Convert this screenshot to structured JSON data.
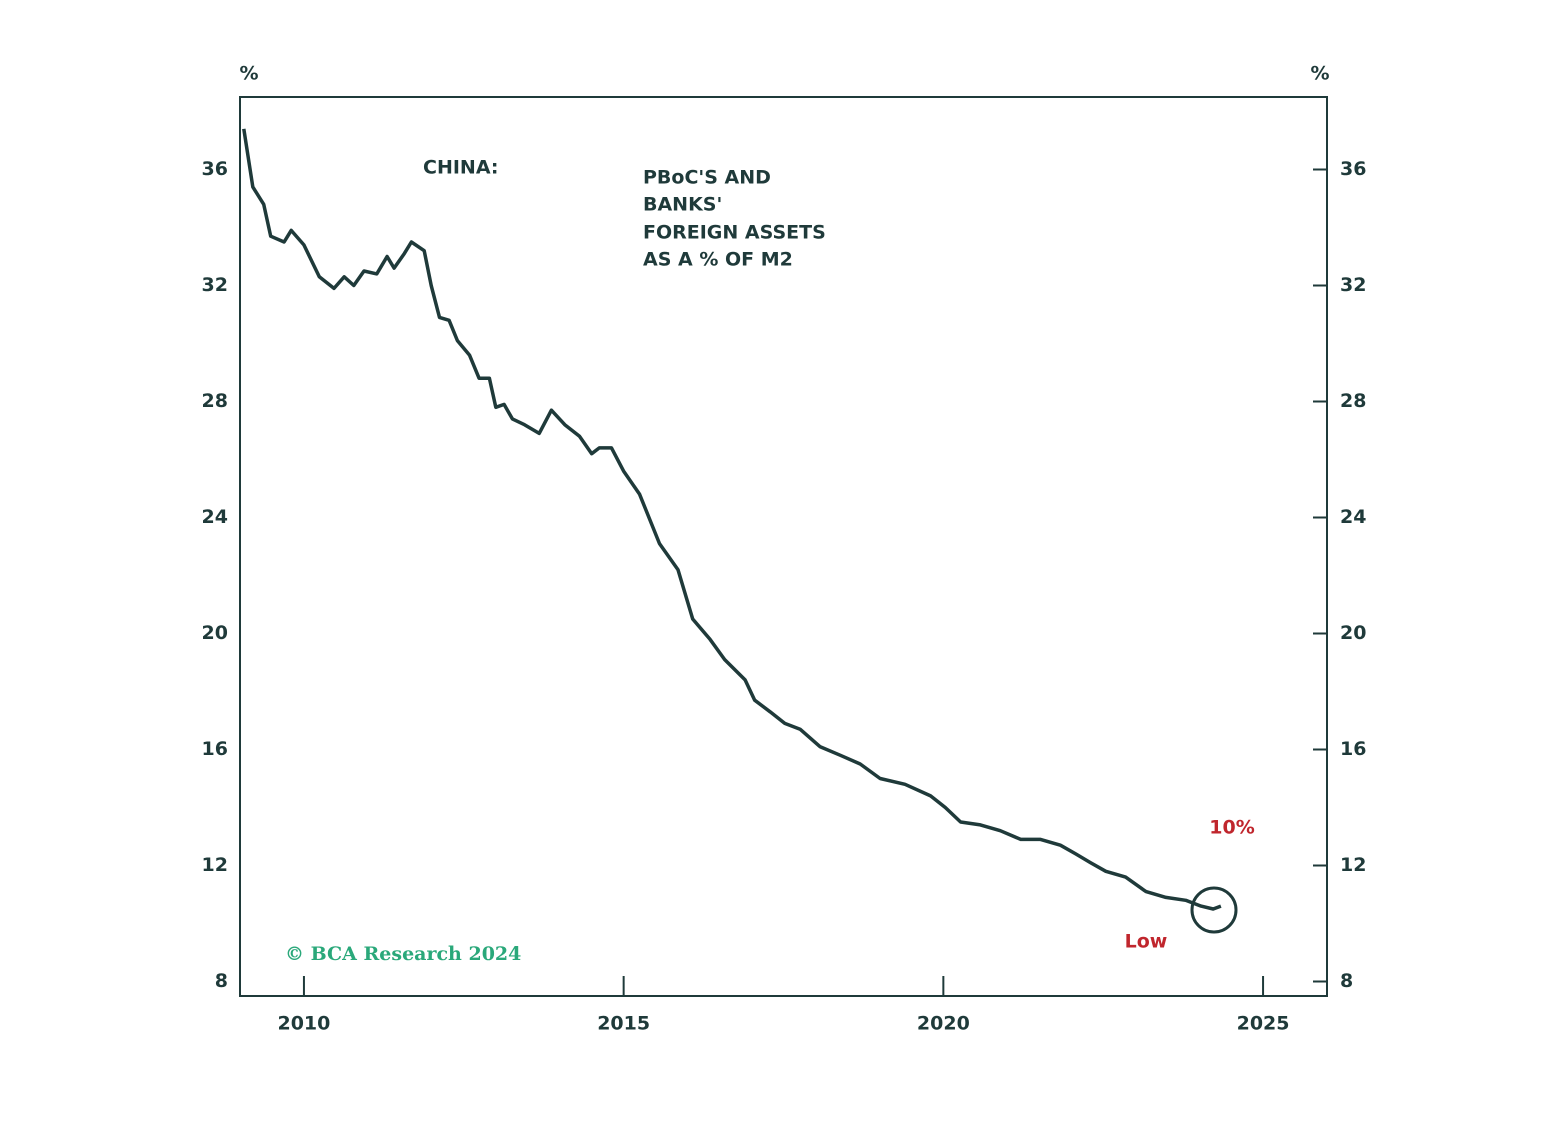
{
  "chart_data": {
    "type": "line",
    "title": "CHINA:",
    "subtitle": [
      "PBoC'S AND",
      "BANKS'",
      "FOREIGN ASSETS",
      "AS A % OF M2"
    ],
    "y_axis_label": "%",
    "y2_axis_label": "%",
    "annotations": {
      "value": "10%",
      "low": "Low",
      "source": "© BCA Research 2024"
    },
    "x": [
      2009.06,
      2009.2,
      2009.37,
      2009.48,
      2009.69,
      2009.8,
      2010.0,
      2010.24,
      2010.47,
      2010.63,
      2010.78,
      2010.94,
      2011.14,
      2011.3,
      2011.41,
      2011.57,
      2011.68,
      2011.88,
      2011.99,
      2012.12,
      2012.27,
      2012.4,
      2012.59,
      2012.74,
      2012.9,
      2013.0,
      2013.13,
      2013.26,
      2013.45,
      2013.68,
      2013.87,
      2014.08,
      2014.31,
      2014.5,
      2014.62,
      2014.81,
      2015.0,
      2015.25,
      2015.56,
      2015.85,
      2016.08,
      2016.35,
      2016.58,
      2016.9,
      2017.05,
      2017.29,
      2017.52,
      2017.76,
      2018.07,
      2018.39,
      2018.7,
      2019.01,
      2019.4,
      2019.8,
      2020.03,
      2020.27,
      2020.58,
      2020.89,
      2021.21,
      2021.52,
      2021.83,
      2022.07,
      2022.3,
      2022.54,
      2022.85,
      2023.17,
      2023.48,
      2023.79,
      2024.03,
      2024.22,
      2024.34
    ],
    "series": [
      {
        "name": "Foreign assets as % of M2",
        "color": "#1f3a3a",
        "values": [
          37.4,
          35.4,
          34.8,
          33.7,
          33.5,
          33.9,
          33.4,
          32.3,
          31.9,
          32.3,
          32.0,
          32.5,
          32.4,
          33.0,
          32.6,
          33.1,
          33.5,
          33.2,
          32.0,
          30.9,
          30.8,
          30.1,
          29.6,
          28.8,
          28.8,
          27.8,
          27.9,
          27.4,
          27.2,
          26.9,
          27.7,
          27.2,
          26.8,
          26.2,
          26.4,
          26.4,
          25.6,
          24.8,
          23.1,
          22.2,
          20.5,
          19.8,
          19.1,
          18.4,
          17.7,
          17.3,
          16.9,
          16.7,
          16.1,
          15.8,
          15.5,
          15.0,
          14.8,
          14.4,
          14.0,
          13.5,
          13.4,
          13.2,
          12.9,
          12.9,
          12.7,
          12.4,
          12.1,
          11.8,
          11.6,
          11.1,
          10.9,
          10.8,
          10.6,
          10.5,
          10.6
        ]
      }
    ],
    "xlim": [
      2009,
      2026
    ],
    "xticks": [
      2010,
      2015,
      2020,
      2025
    ],
    "ylim": [
      7.5,
      38.5
    ],
    "yticks": [
      8,
      12,
      16,
      20,
      24,
      28,
      32,
      36
    ],
    "y2lim": [
      7.5,
      38.5
    ],
    "y2ticks": [
      8,
      12,
      16,
      20,
      24,
      28,
      32,
      36
    ],
    "annotation_color": "#c0262d",
    "source_color": "#2aa87a",
    "text_color": "#1f3a3a"
  }
}
